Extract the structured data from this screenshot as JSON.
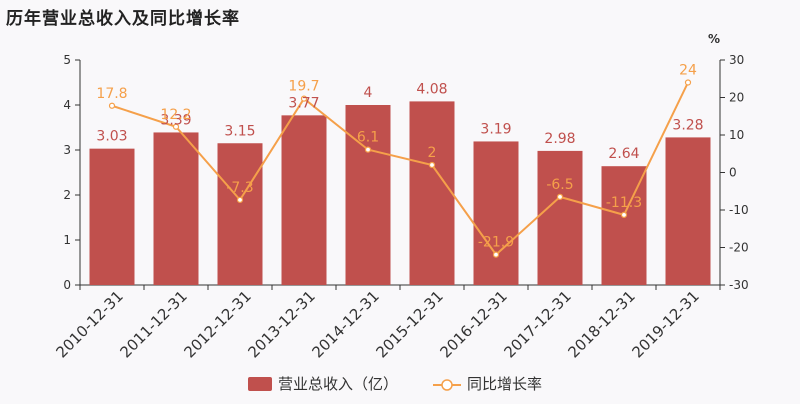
{
  "chart_data": {
    "type": "bar+line",
    "title": "历年营业总收入及同比增长率",
    "categories": [
      "2010-12-31",
      "2011-12-31",
      "2012-12-31",
      "2013-12-31",
      "2014-12-31",
      "2015-12-31",
      "2016-12-31",
      "2017-12-31",
      "2018-12-31",
      "2019-12-31"
    ],
    "series": [
      {
        "name": "营业总收入（亿）",
        "type": "bar",
        "axis": "left",
        "color": "#c0504d",
        "values": [
          3.03,
          3.39,
          3.15,
          3.77,
          4,
          4.08,
          3.19,
          2.98,
          2.64,
          3.28
        ],
        "labels": [
          "3.03",
          "3.39",
          "3.15",
          "3.77",
          "4",
          "4.08",
          "3.19",
          "2.98",
          "2.64",
          "3.28"
        ]
      },
      {
        "name": "同比增长率",
        "type": "line",
        "axis": "right",
        "color": "#f5a04a",
        "values": [
          17.8,
          12.2,
          -7.3,
          19.7,
          6.1,
          2,
          -21.9,
          -6.5,
          -11.3,
          24
        ],
        "labels": [
          "17.8",
          "12.2",
          "-7.3",
          "19.7",
          "6.1",
          "2",
          "-21.9",
          "-6.5",
          "-11.3",
          "24"
        ]
      }
    ],
    "y_left": {
      "range": [
        0,
        5
      ],
      "ticks": [
        "0",
        "1",
        "2",
        "3",
        "4",
        "5"
      ]
    },
    "y_right": {
      "range": [
        -30,
        30
      ],
      "ticks": [
        "-30",
        "-20",
        "-10",
        "0",
        "10",
        "20",
        "30"
      ],
      "unit": "%"
    },
    "legend_position": "bottom-center",
    "grid": false
  }
}
